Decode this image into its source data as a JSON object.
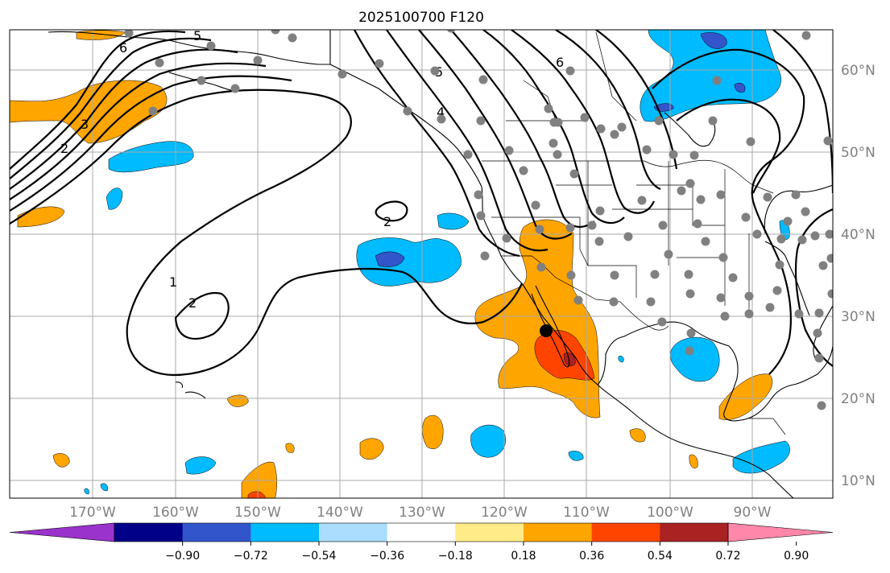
{
  "title": "2025100700 F120",
  "lat_labels": [
    "60°N",
    "50°N",
    "40°N",
    "30°N",
    "20°N",
    "10°N"
  ],
  "lon_labels": [
    "170°W",
    "160°W",
    "150°W",
    "140°W",
    "130°W",
    "120°W",
    "110°W",
    "100°W",
    "90°W"
  ],
  "contour_labels": [
    "6",
    "5",
    "6",
    "5",
    "4",
    "3",
    "2",
    "2",
    "1",
    "2"
  ],
  "colorbar": {
    "colors": [
      "#9933cc",
      "#000088",
      "#3355cc",
      "#00bbff",
      "#aaddff",
      "#ffffff",
      "#ffeb88",
      "#ffa500",
      "#ff4400",
      "#aa2222",
      "#ff88aa"
    ],
    "tick_labels": [
      "−0.90",
      "−0.72",
      "−0.54",
      "−0.36",
      "−0.18",
      "0.18",
      "0.36",
      "0.54",
      "0.72",
      "0.90"
    ]
  },
  "colors": {
    "grid": "#a9a9a9",
    "station": "#808080",
    "label": "#808080"
  }
}
